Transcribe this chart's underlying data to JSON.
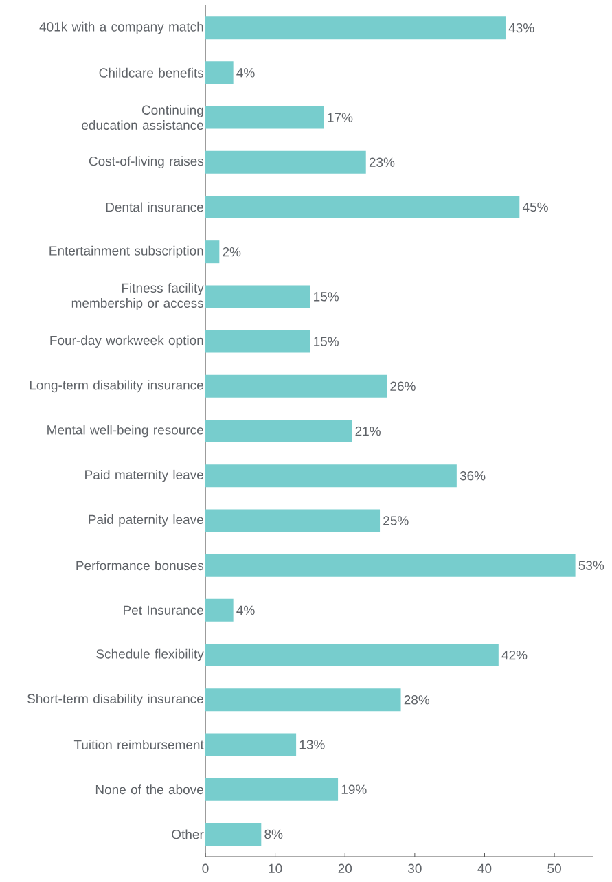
{
  "chart_data": {
    "type": "bar",
    "orientation": "horizontal",
    "categories": [
      "401k with a company match",
      "Childcare benefits",
      "Continuing education assistance",
      "Cost-of-living raises",
      "Dental insurance",
      "Entertainment subscription",
      "Fitness facility membership or access",
      "Four-day workweek option",
      "Long-term disability insurance",
      "Mental well-being resource",
      "Paid maternity leave",
      "Paid paternity leave",
      "Performance bonuses",
      "Pet Insurance",
      "Schedule flexibility",
      "Short-term disability insurance",
      "Tuition reimbursement",
      "None of the above",
      "Other"
    ],
    "values": [
      43,
      4,
      17,
      23,
      45,
      2,
      15,
      15,
      26,
      21,
      36,
      25,
      53,
      4,
      42,
      28,
      13,
      19,
      8
    ],
    "value_labels": [
      "43%",
      "4%",
      "17%",
      "23%",
      "45%",
      "2%",
      "15%",
      "15%",
      "26%",
      "21%",
      "36%",
      "25%",
      "53%",
      "4%",
      "42%",
      "28%",
      "13%",
      "19%",
      "8%"
    ],
    "color": "#77cdcd",
    "xlim": [
      0,
      55.5
    ],
    "xticks": [
      0,
      10,
      20,
      30,
      40,
      50
    ]
  }
}
